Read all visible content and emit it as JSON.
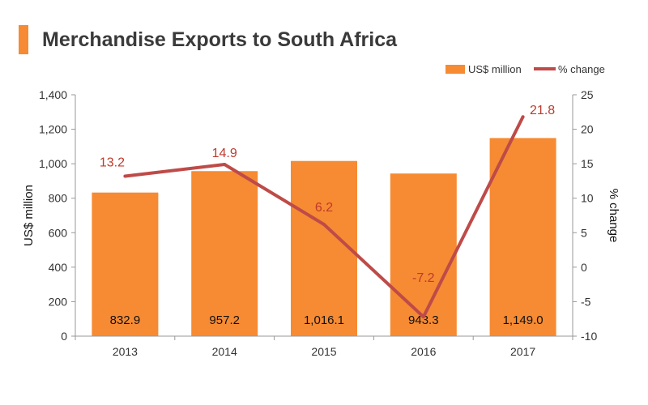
{
  "title": "Merchandise Exports to South Africa",
  "colors": {
    "accent": "#F68B33",
    "bar": "#F68B33",
    "line": "#BE4B48",
    "line_label": "#C0392B",
    "axis": "#999999",
    "text": "#333333"
  },
  "legend": {
    "position": "top-right",
    "bar_label": "US$ million",
    "line_label": "% change"
  },
  "chart_data": {
    "type": "bar+line",
    "categories": [
      "2013",
      "2014",
      "2015",
      "2016",
      "2017"
    ],
    "series": [
      {
        "name": "US$ million",
        "type": "bar",
        "axis": "left",
        "values": [
          832.9,
          957.2,
          1016.1,
          943.3,
          1149.0
        ],
        "labels": [
          "832.9",
          "957.2",
          "1,016.1",
          "943.3",
          "1,149.0"
        ]
      },
      {
        "name": "% change",
        "type": "line",
        "axis": "right",
        "values": [
          13.2,
          14.9,
          6.2,
          -7.2,
          21.8
        ],
        "labels": [
          "13.2",
          "14.9",
          "6.2",
          "-7.2",
          "21.8"
        ]
      }
    ],
    "ylabel_left": "US$ million",
    "ylabel_right": "% change",
    "ylim_left": [
      0,
      1400
    ],
    "yticks_left": [
      "0",
      "200",
      "400",
      "600",
      "800",
      "1,000",
      "1,200",
      "1,400"
    ],
    "ylim_right": [
      -10,
      25
    ],
    "yticks_right": [
      "-10",
      "-5",
      "0",
      "5",
      "10",
      "15",
      "20",
      "25"
    ],
    "grid": false
  }
}
